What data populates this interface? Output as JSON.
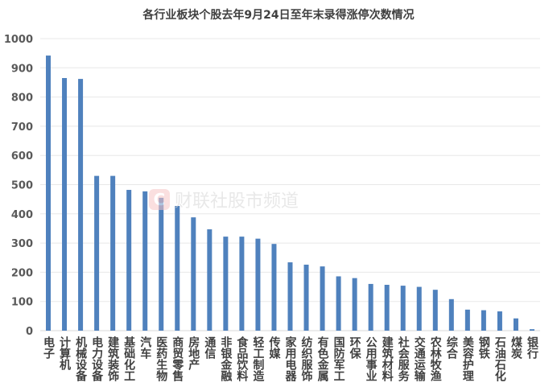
{
  "chart_data": {
    "type": "bar",
    "title": "各行业板块个股去年9月24日至年末录得涨停次数情况",
    "xlabel": "",
    "ylabel": "",
    "ylim": [
      0,
      1000
    ],
    "yticks": [
      0,
      100,
      200,
      300,
      400,
      500,
      600,
      700,
      800,
      900,
      1000
    ],
    "grid": true,
    "color": "#4f81bd",
    "categories": [
      "电子",
      "计算机",
      "机械设备",
      "电力设备",
      "建筑装饰",
      "基础化工",
      "汽车",
      "医药生物",
      "商贸零售",
      "房地产",
      "通信",
      "非银金融",
      "食品饮料",
      "轻工制造",
      "传媒",
      "家用电器",
      "纺织服饰",
      "有色金属",
      "国防军工",
      "环保",
      "公用事业",
      "建筑材料",
      "社会服务",
      "交通运输",
      "农林牧渔",
      "综合",
      "美容护理",
      "钢铁",
      "石油石化",
      "煤炭",
      "银行"
    ],
    "values": [
      942,
      865,
      862,
      530,
      530,
      482,
      477,
      455,
      427,
      388,
      347,
      322,
      322,
      315,
      297,
      234,
      226,
      220,
      186,
      180,
      160,
      157,
      154,
      150,
      140,
      108,
      72,
      70,
      66,
      42,
      5
    ]
  },
  "watermark": "财联社股市频道"
}
